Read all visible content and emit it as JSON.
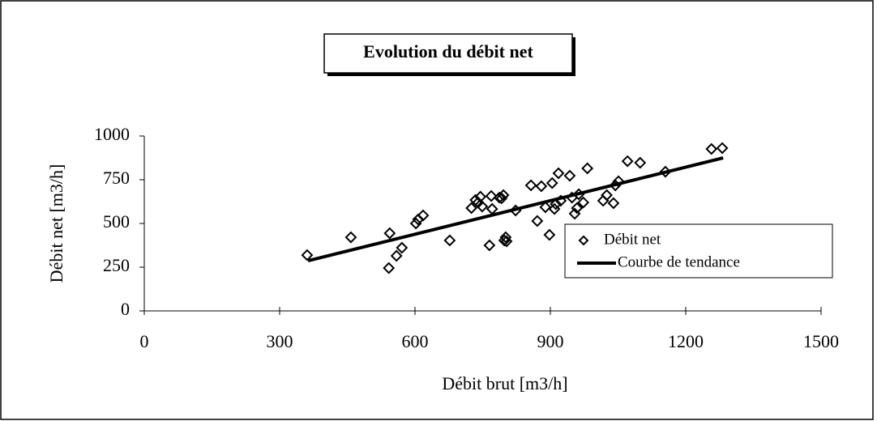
{
  "chart_data": {
    "type": "scatter",
    "title": "Evolution du débit net",
    "xlabel": "Débit brut [m3/h]",
    "ylabel": "Débit net [m3/h]",
    "xlim": [
      0,
      1500
    ],
    "xticks": [
      0,
      300,
      600,
      900,
      1200,
      1500
    ],
    "ylim": [
      0,
      1000
    ],
    "yticks": [
      0,
      250,
      500,
      750,
      1000
    ],
    "series": [
      {
        "name": "Débit net",
        "color": "#000000",
        "marker": "diamond",
        "x": [
          361,
          458,
          542,
          544,
          559,
          571,
          602,
          607,
          618,
          677,
          725,
          734,
          740,
          745,
          749,
          765,
          769,
          771,
          787,
          792,
          796,
          798,
          801,
          803,
          823,
          857,
          871,
          880,
          889,
          898,
          904,
          909,
          912,
          918,
          923,
          943,
          948,
          954,
          959,
          963,
          973,
          982,
          1017,
          1025,
          1040,
          1044,
          1051,
          1071,
          1099,
          1155,
          1257,
          1281
        ],
        "values": [
          319,
          421,
          245,
          444,
          315,
          361,
          500,
          523,
          546,
          403,
          588,
          634,
          620,
          653,
          597,
          375,
          657,
          583,
          648,
          644,
          662,
          403,
          421,
          398,
          574,
          718,
          514,
          713,
          593,
          435,
          731,
          583,
          611,
          787,
          630,
          773,
          648,
          556,
          588,
          667,
          620,
          815,
          630,
          662,
          616,
          718,
          741,
          856,
          847,
          796,
          926,
          931
        ]
      },
      {
        "name": "Courbe de tendance",
        "color": "#000000",
        "type": "line",
        "x": [
          363,
          1283
        ],
        "values": [
          287,
          875
        ]
      }
    ],
    "legend": "right"
  }
}
